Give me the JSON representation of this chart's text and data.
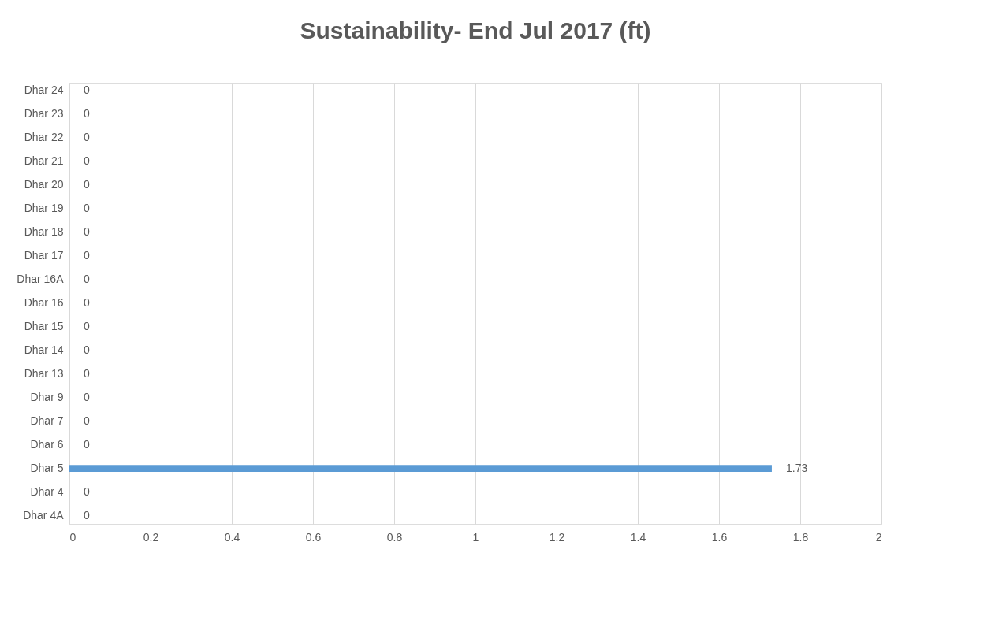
{
  "chart_data": {
    "type": "bar",
    "orientation": "horizontal",
    "title": "Sustainability- End Jul 2017 (ft)",
    "categories": [
      "Dhar 24",
      "Dhar 23",
      "Dhar 22",
      "Dhar 21",
      "Dhar 20",
      "Dhar 19",
      "Dhar 18",
      "Dhar 17",
      "Dhar 16A",
      "Dhar 16",
      "Dhar 15",
      "Dhar 14",
      "Dhar 13",
      "Dhar 9",
      "Dhar 7",
      "Dhar 6",
      "Dhar 5",
      "Dhar 4",
      "Dhar 4A"
    ],
    "values": [
      0,
      0,
      0,
      0,
      0,
      0,
      0,
      0,
      0,
      0,
      0,
      0,
      0,
      0,
      0,
      0,
      1.73,
      0,
      0
    ],
    "color": "#5b9bd5",
    "xlim": [
      0,
      2
    ],
    "xticks": [
      0,
      0.2,
      0.4,
      0.6,
      0.8,
      1,
      1.2,
      1.4,
      1.6,
      1.8,
      2
    ],
    "grid": "x",
    "data_labels": true
  }
}
